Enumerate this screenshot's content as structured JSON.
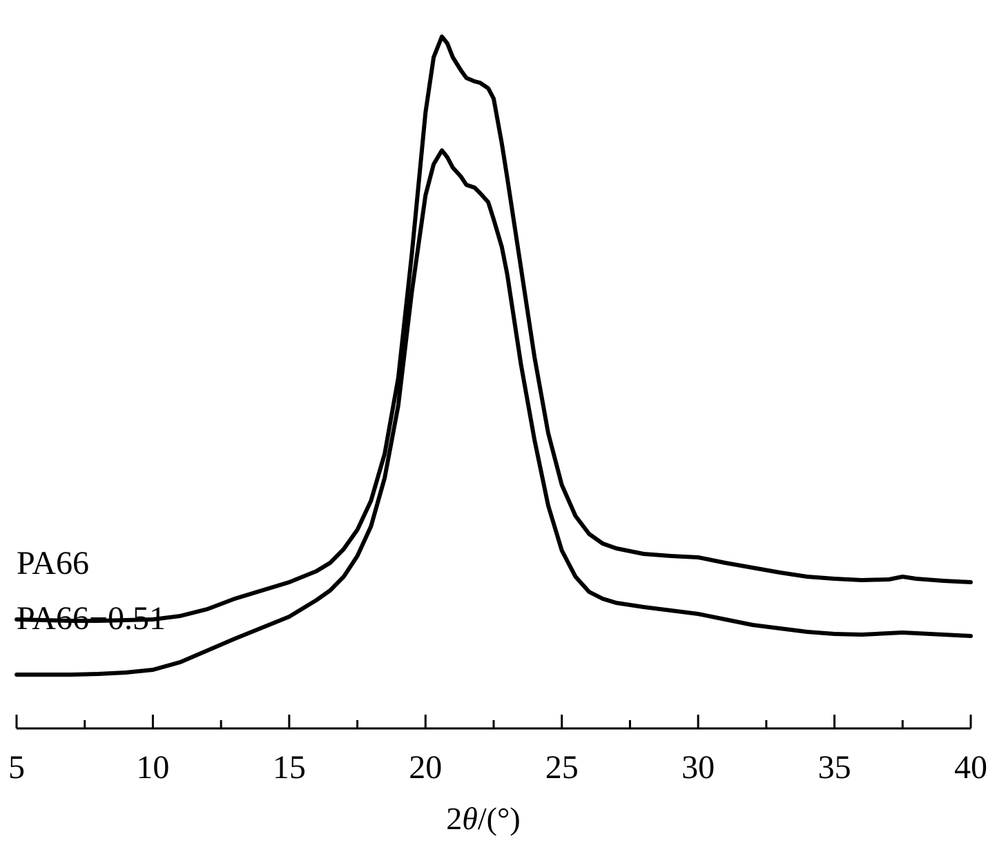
{
  "chart_data": {
    "type": "line",
    "xlabel": "2θ/(°)",
    "ylabel": "",
    "xlim": [
      5,
      40
    ],
    "xticks": [
      5,
      10,
      15,
      20,
      25,
      30,
      35,
      40
    ],
    "xtick_labels": [
      "5",
      "10",
      "15",
      "20",
      "25",
      "30",
      "35",
      "40"
    ],
    "minor_ticks": [
      7.5,
      12.5,
      17.5,
      22.5,
      27.5,
      32.5,
      37.5
    ],
    "y_axis_shown": false,
    "grid": false,
    "legend": "none (curves labeled directly at left)",
    "line_color": "#000000",
    "series": [
      {
        "name": "PA66",
        "x": [
          5,
          6,
          7,
          8,
          9,
          10,
          11,
          12,
          13,
          14,
          15,
          16,
          16.5,
          17,
          17.5,
          18,
          18.5,
          19,
          19.5,
          20,
          20.3,
          20.6,
          20.8,
          21,
          21.3,
          21.5,
          21.8,
          22,
          22.3,
          22.5,
          22.8,
          23,
          23.5,
          24,
          24.5,
          25,
          25.5,
          26,
          26.5,
          27,
          28,
          29,
          30,
          31,
          32,
          33,
          34,
          35,
          36,
          37,
          37.5,
          38,
          39,
          40
        ],
        "y": [
          0.8,
          0.79,
          0.78,
          0.78,
          0.79,
          0.8,
          0.85,
          0.95,
          1.1,
          1.22,
          1.34,
          1.5,
          1.62,
          1.82,
          2.1,
          2.52,
          3.2,
          4.3,
          6.1,
          8.15,
          8.95,
          9.25,
          9.15,
          8.95,
          8.76,
          8.65,
          8.6,
          8.58,
          8.5,
          8.35,
          7.7,
          7.2,
          5.9,
          4.6,
          3.5,
          2.75,
          2.3,
          2.04,
          1.9,
          1.83,
          1.75,
          1.72,
          1.7,
          1.62,
          1.55,
          1.48,
          1.42,
          1.39,
          1.37,
          1.38,
          1.42,
          1.39,
          1.36,
          1.34
        ]
      },
      {
        "name": "PA66-0.51",
        "x": [
          5,
          6,
          7,
          8,
          9,
          10,
          11,
          12,
          13,
          14,
          15,
          16,
          16.5,
          17,
          17.5,
          18,
          18.5,
          19,
          19.5,
          20,
          20.3,
          20.6,
          20.8,
          21,
          21.3,
          21.5,
          21.8,
          22,
          22.3,
          22.5,
          22.8,
          23,
          23.5,
          24,
          24.5,
          25,
          25.5,
          26,
          26.5,
          27,
          28,
          29,
          30,
          31,
          32,
          33,
          34,
          35,
          36,
          37,
          37.5,
          38,
          39,
          40
        ],
        "y": [
          0.0,
          0.0,
          0.0,
          0.01,
          0.03,
          0.07,
          0.18,
          0.35,
          0.52,
          0.68,
          0.84,
          1.08,
          1.22,
          1.42,
          1.72,
          2.15,
          2.85,
          3.9,
          5.55,
          6.95,
          7.4,
          7.6,
          7.5,
          7.35,
          7.22,
          7.1,
          7.06,
          6.98,
          6.85,
          6.6,
          6.2,
          5.8,
          4.5,
          3.4,
          2.45,
          1.8,
          1.42,
          1.2,
          1.1,
          1.04,
          0.98,
          0.93,
          0.88,
          0.8,
          0.72,
          0.67,
          0.62,
          0.59,
          0.58,
          0.6,
          0.61,
          0.6,
          0.58,
          0.56
        ]
      }
    ]
  }
}
